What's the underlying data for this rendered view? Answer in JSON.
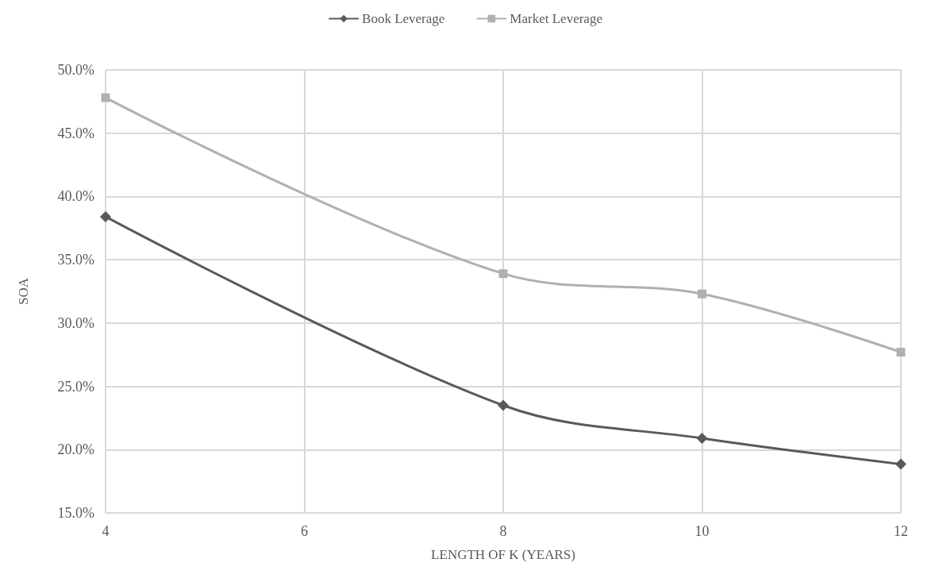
{
  "chart_data": {
    "type": "line",
    "xlabel": "LENGTH OF K (YEARS)",
    "ylabel": "SOA",
    "x": [
      4,
      8,
      10,
      12
    ],
    "series": [
      {
        "name": "Book Leverage",
        "color": "#595959",
        "marker": "diamond",
        "values": [
          38.4,
          23.5,
          20.9,
          18.85
        ]
      },
      {
        "name": "Market Leverage",
        "color": "#b0b0b0",
        "marker": "square",
        "values": [
          47.8,
          33.9,
          32.3,
          27.7
        ]
      }
    ],
    "xlim": [
      4,
      12
    ],
    "xticks": [
      4,
      6,
      8,
      10,
      12
    ],
    "ylim": [
      15,
      50
    ],
    "yticks": [
      {
        "value": 15,
        "label": "15.0%"
      },
      {
        "value": 20,
        "label": "20.0%"
      },
      {
        "value": 25,
        "label": "25.0%"
      },
      {
        "value": 30,
        "label": "30.0%"
      },
      {
        "value": 35,
        "label": "35.0%"
      },
      {
        "value": 40,
        "label": "40.0%"
      },
      {
        "value": 45,
        "label": "45.0%"
      },
      {
        "value": 50,
        "label": "50.0%"
      }
    ],
    "grid": true,
    "legend": "top",
    "line_style": "solid"
  }
}
